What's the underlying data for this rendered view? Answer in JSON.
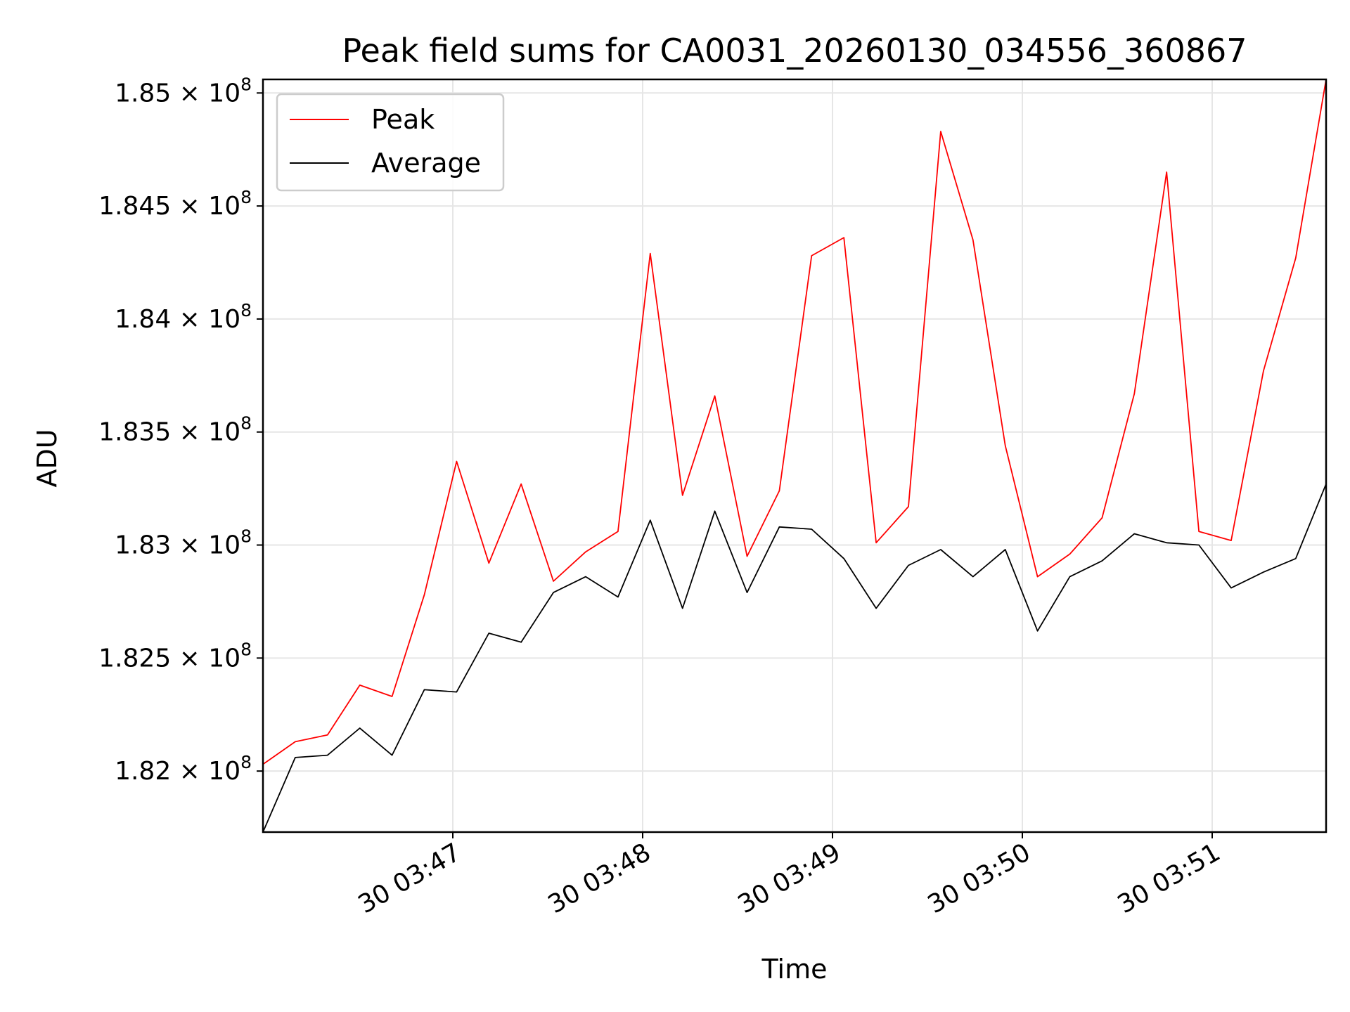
{
  "chart_data": {
    "type": "line",
    "title": "Peak field sums for CA0031_20260130_034556_360867",
    "xlabel": "Time",
    "ylabel": "ADU",
    "grid": true,
    "legend_position": "top-left",
    "xlim": [
      0,
      336
    ],
    "ylim": [
      181730000,
      185060000
    ],
    "x_unit": "seconds after 03:46:00",
    "x_ticks": [
      60,
      120,
      180,
      240,
      300
    ],
    "x_tick_labels": [
      "30 03:47",
      "30 03:48",
      "30 03:49",
      "30 03:50",
      "30 03:51"
    ],
    "y_ticks": [
      182000000,
      182500000,
      183000000,
      183500000,
      184000000,
      184500000,
      185000000
    ],
    "y_tick_mantissas": [
      "1.82",
      "1.825",
      "1.83",
      "1.835",
      "1.84",
      "1.845",
      "1.85"
    ],
    "y_tick_multiplier": "× 10",
    "y_tick_exponent": "8",
    "x": [
      0,
      10.2,
      20.4,
      30.6,
      40.8,
      51,
      61.2,
      71.4,
      81.6,
      91.8,
      102,
      112.2,
      122.4,
      132.6,
      142.8,
      153,
      163.2,
      173.4,
      183.6,
      193.8,
      204,
      214.2,
      224.4,
      234.6,
      244.8,
      255,
      265.2,
      275.4,
      285.6,
      295.8,
      306,
      316.2,
      326.4,
      336
    ],
    "series": [
      {
        "name": "Peak",
        "color": "#ff0000",
        "values": [
          182030000,
          182130000,
          182160000,
          182380000,
          182330000,
          182780000,
          183370000,
          182920000,
          183270000,
          182840000,
          182970000,
          183060000,
          184290000,
          183220000,
          183660000,
          182950000,
          183240000,
          184280000,
          184360000,
          183010000,
          183170000,
          184830000,
          184350000,
          183440000,
          182860000,
          182960000,
          183120000,
          183670000,
          184650000,
          183060000,
          183020000,
          183770000,
          184270000,
          185060000
        ]
      },
      {
        "name": "Average",
        "color": "#000000",
        "values": [
          181730000,
          182060000,
          182070000,
          182190000,
          182070000,
          182360000,
          182350000,
          182610000,
          182570000,
          182790000,
          182860000,
          182770000,
          183110000,
          182720000,
          183150000,
          182790000,
          183080000,
          183070000,
          182940000,
          182720000,
          182910000,
          182980000,
          182860000,
          182980000,
          182620000,
          182860000,
          182930000,
          183050000,
          183010000,
          183000000,
          182810000,
          182880000,
          182940000,
          183270000
        ]
      }
    ]
  }
}
